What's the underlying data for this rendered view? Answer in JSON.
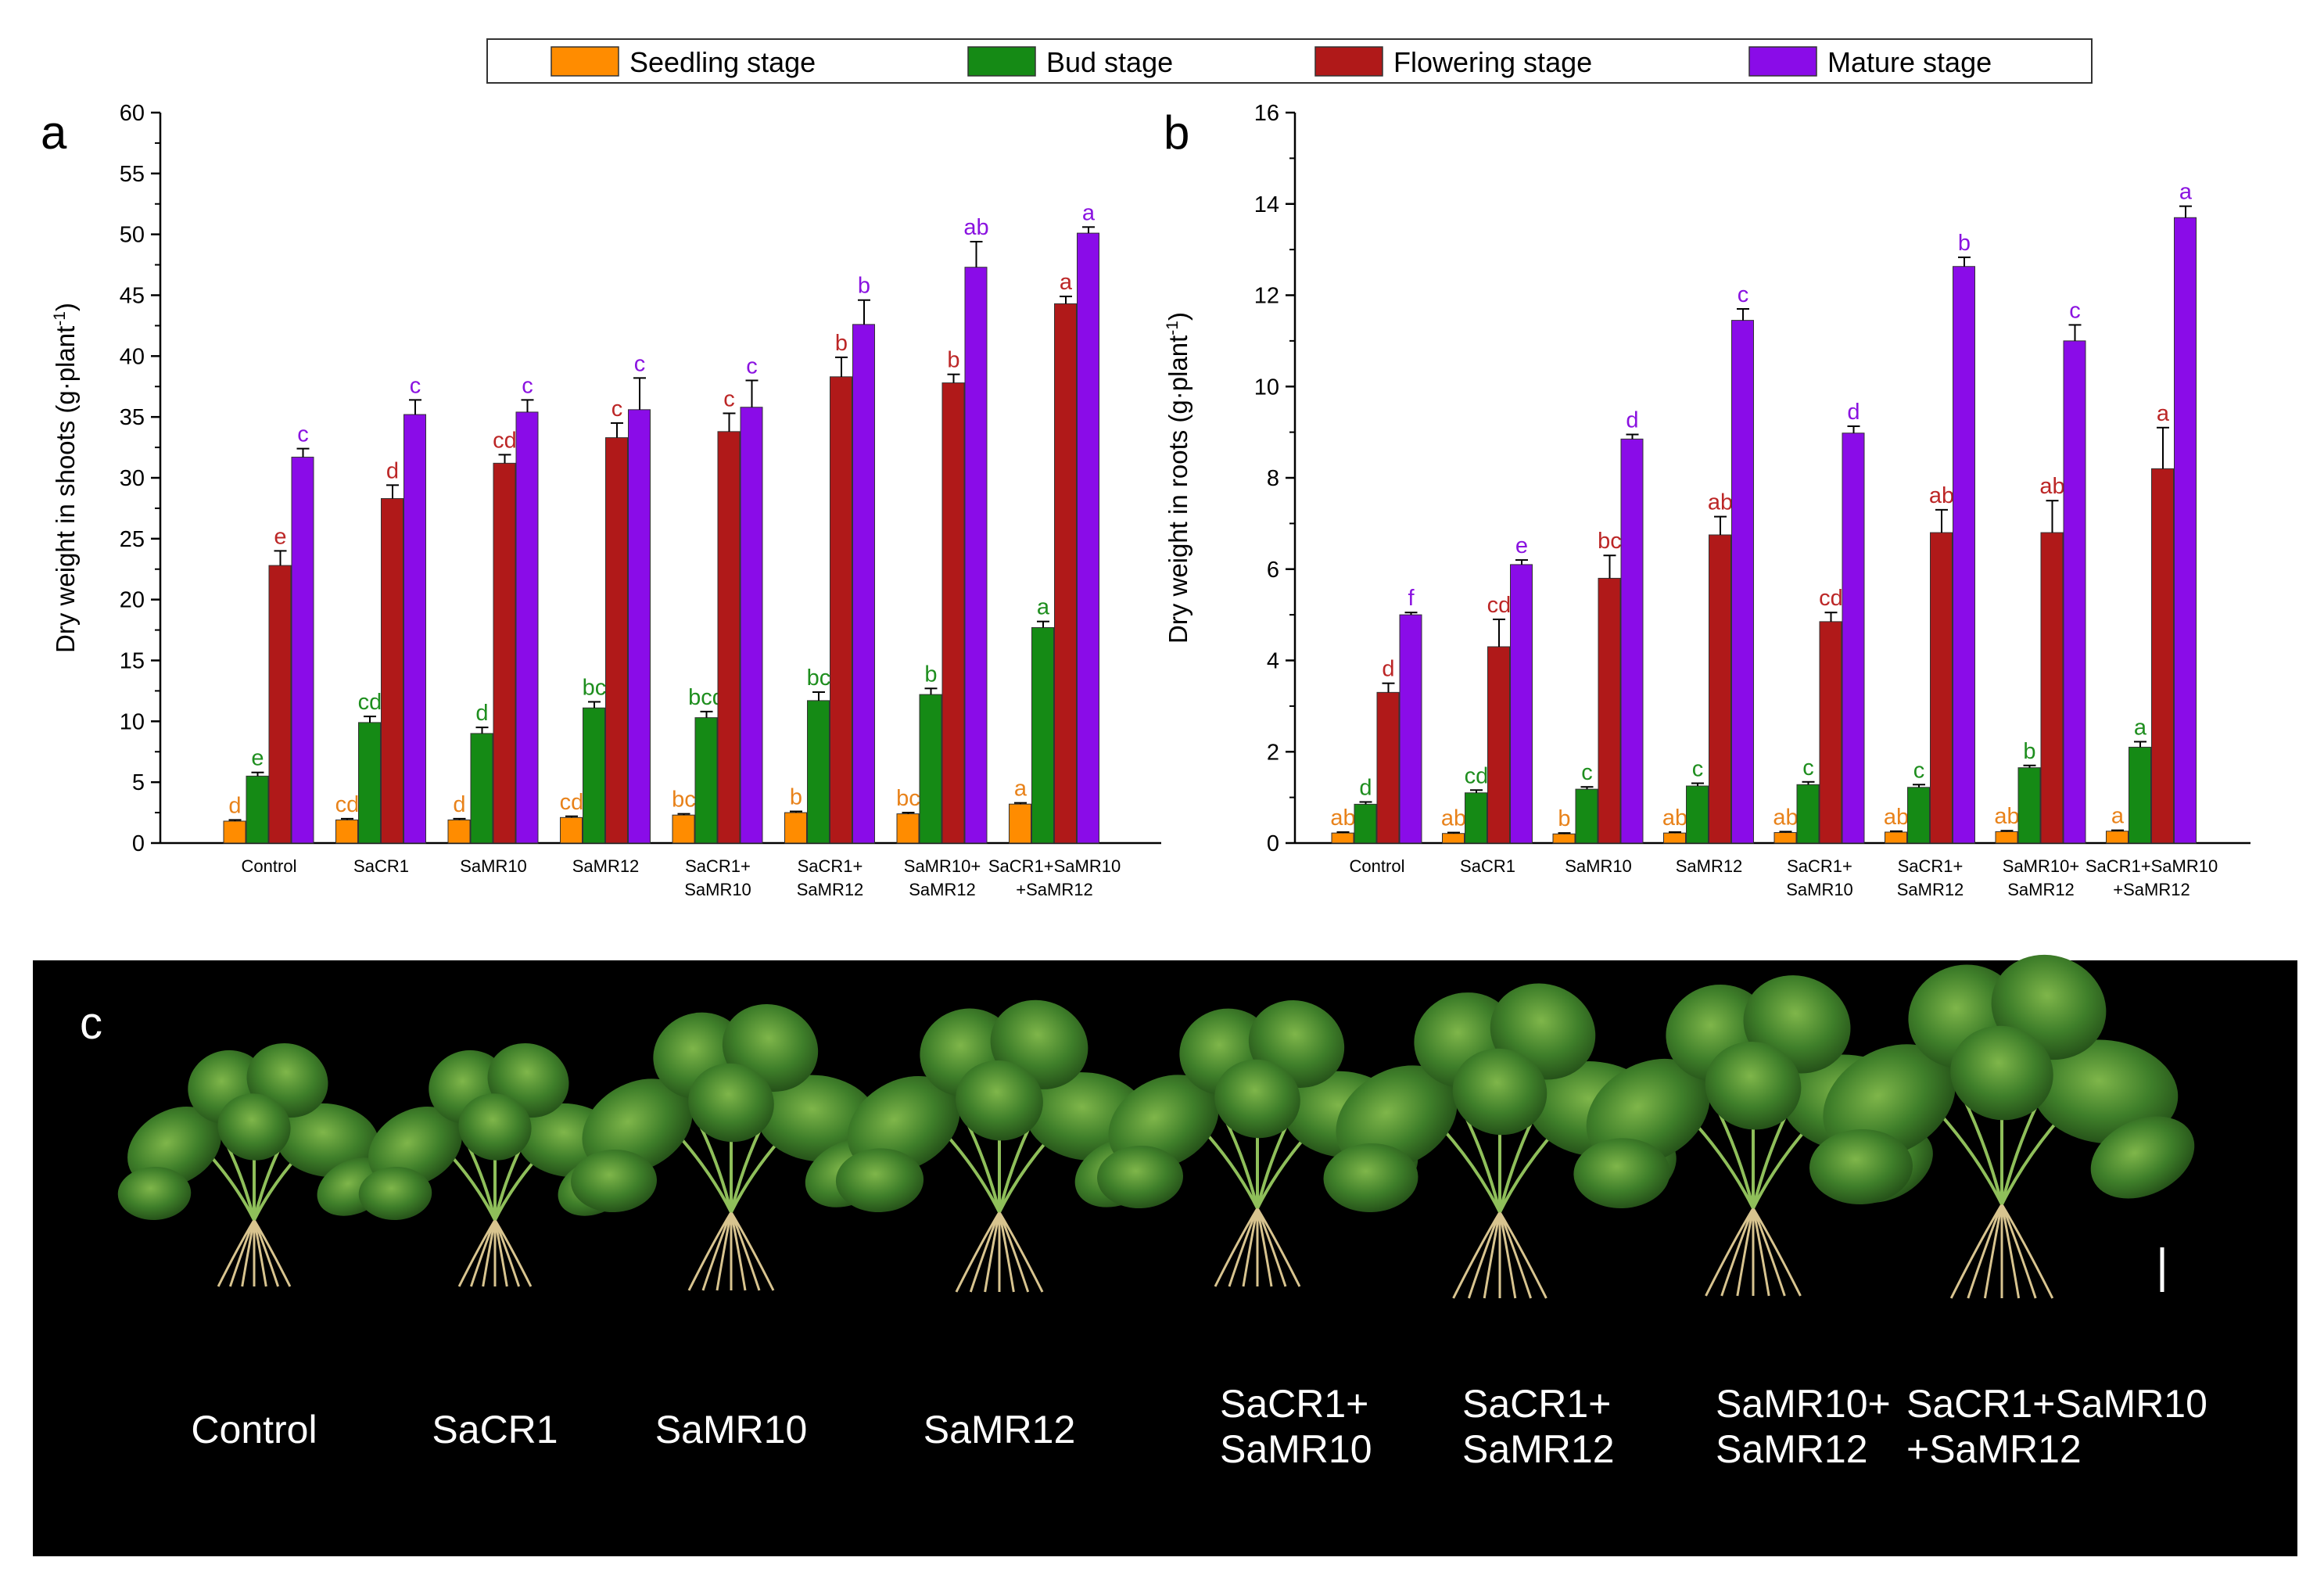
{
  "legend": {
    "entries": [
      {
        "label": "Seedling stage",
        "color": "#FF8C00"
      },
      {
        "label": "Bud stage",
        "color": "#158A15"
      },
      {
        "label": "Flowering stage",
        "color": "#B01919"
      },
      {
        "label": "Mature stage",
        "color": "#8A0CE8"
      }
    ]
  },
  "chart_data": [
    {
      "type": "bar",
      "panel_label": "a",
      "ylabel": "Dry weight in shoots (g·plant",
      "ylabel_sup": "-1",
      "ylabel_close": ")",
      "ylim": [
        0,
        60
      ],
      "yticks": [
        0,
        5,
        10,
        15,
        20,
        25,
        30,
        35,
        40,
        45,
        50,
        55,
        60
      ],
      "categories": [
        [
          "Control"
        ],
        [
          "SaCR1"
        ],
        [
          "SaMR10"
        ],
        [
          "SaMR12"
        ],
        [
          "SaCR1+",
          "SaMR10"
        ],
        [
          "SaCR1+",
          "SaMR12"
        ],
        [
          "SaMR10+",
          "SaMR12"
        ],
        [
          "SaCR1+SaMR10",
          "+SaMR12"
        ]
      ],
      "series": [
        {
          "name": "Seedling stage",
          "values": [
            1.8,
            1.9,
            1.9,
            2.1,
            2.3,
            2.5,
            2.4,
            3.2
          ],
          "errors": [
            0.1,
            0.1,
            0.1,
            0.1,
            0.1,
            0.1,
            0.1,
            0.1
          ],
          "letters": [
            "d",
            "cd",
            "d",
            "cd",
            "bc",
            "b",
            "bc",
            "a"
          ]
        },
        {
          "name": "Bud stage",
          "values": [
            5.5,
            9.9,
            9.0,
            11.1,
            10.3,
            11.7,
            12.2,
            17.7
          ],
          "errors": [
            0.3,
            0.5,
            0.5,
            0.5,
            0.5,
            0.7,
            0.5,
            0.5
          ],
          "letters": [
            "e",
            "cd",
            "d",
            "bc",
            "bcd",
            "bc",
            "b",
            "a"
          ]
        },
        {
          "name": "Flowering stage",
          "values": [
            22.8,
            28.3,
            31.2,
            33.3,
            33.8,
            38.3,
            37.8,
            44.3
          ],
          "errors": [
            1.2,
            1.1,
            0.7,
            1.2,
            1.5,
            1.6,
            0.7,
            0.6
          ],
          "letters": [
            "e",
            "d",
            "cd",
            "c",
            "c",
            "b",
            "b",
            "a"
          ]
        },
        {
          "name": "Mature stage",
          "values": [
            31.7,
            35.2,
            35.4,
            35.6,
            35.8,
            42.6,
            47.3,
            50.1
          ],
          "errors": [
            0.7,
            1.2,
            1.0,
            2.6,
            2.2,
            2.0,
            2.1,
            0.5
          ],
          "letters": [
            "c",
            "c",
            "c",
            "c",
            "c",
            "b",
            "ab",
            "a"
          ]
        }
      ]
    },
    {
      "type": "bar",
      "panel_label": "b",
      "ylabel": "Dry weight in roots (g·plant",
      "ylabel_sup": "-1",
      "ylabel_close": ")",
      "ylim": [
        0,
        16
      ],
      "yticks": [
        0,
        2,
        4,
        6,
        8,
        10,
        12,
        14,
        16
      ],
      "categories": [
        [
          "Control"
        ],
        [
          "SaCR1"
        ],
        [
          "SaMR10"
        ],
        [
          "SaMR12"
        ],
        [
          "SaCR1+",
          "SaMR10"
        ],
        [
          "SaCR1+",
          "SaMR12"
        ],
        [
          "SaMR10+",
          "SaMR12"
        ],
        [
          "SaCR1+SaMR10",
          "+SaMR12"
        ]
      ],
      "series": [
        {
          "name": "Seedling stage",
          "values": [
            0.22,
            0.21,
            0.2,
            0.22,
            0.23,
            0.24,
            0.25,
            0.26
          ],
          "errors": [
            0.02,
            0.02,
            0.02,
            0.02,
            0.02,
            0.02,
            0.02,
            0.02
          ],
          "letters": [
            "ab",
            "ab",
            "b",
            "ab",
            "ab",
            "ab",
            "ab",
            "a"
          ]
        },
        {
          "name": "Bud stage",
          "values": [
            0.85,
            1.1,
            1.18,
            1.25,
            1.28,
            1.22,
            1.65,
            2.1
          ],
          "errors": [
            0.05,
            0.06,
            0.05,
            0.06,
            0.06,
            0.06,
            0.05,
            0.12
          ],
          "letters": [
            "d",
            "cd",
            "c",
            "c",
            "c",
            "c",
            "b",
            "a"
          ]
        },
        {
          "name": "Flowering stage",
          "values": [
            3.3,
            4.3,
            5.8,
            6.75,
            4.85,
            6.8,
            6.8,
            8.2
          ],
          "errors": [
            0.2,
            0.6,
            0.5,
            0.4,
            0.2,
            0.5,
            0.7,
            0.9
          ],
          "letters": [
            "d",
            "cd",
            "bc",
            "ab",
            "cd",
            "ab",
            "ab",
            "a"
          ]
        },
        {
          "name": "Mature stage",
          "values": [
            5.0,
            6.1,
            8.85,
            11.45,
            8.98,
            12.63,
            11.0,
            13.7
          ],
          "errors": [
            0.05,
            0.1,
            0.1,
            0.25,
            0.15,
            0.2,
            0.35,
            0.25
          ],
          "letters": [
            "f",
            "e",
            "d",
            "c",
            "d",
            "b",
            "c",
            "a"
          ]
        }
      ]
    }
  ],
  "photo_panel": {
    "panel_label": "c",
    "labels": [
      [
        "Control"
      ],
      [
        "SaCR1"
      ],
      [
        "SaMR10"
      ],
      [
        "SaMR12"
      ],
      [
        "SaCR1+",
        "SaMR10"
      ],
      [
        "SaCR1+",
        "SaMR12"
      ],
      [
        "SaMR10+",
        "SaMR12"
      ],
      [
        "SaCR1+SaMR10",
        "+SaMR12"
      ]
    ]
  }
}
